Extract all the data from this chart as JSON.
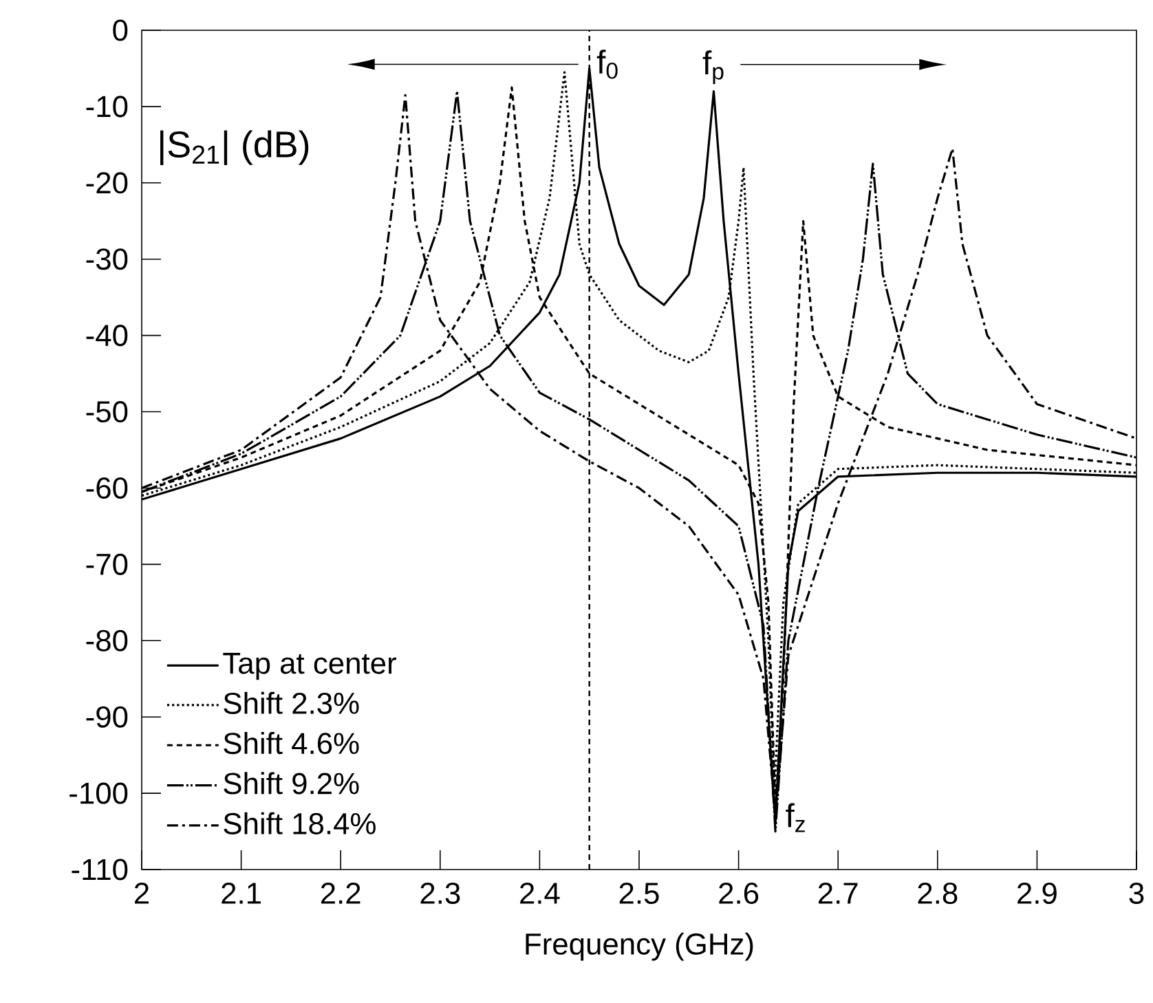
{
  "chart_data": {
    "type": "line",
    "xlabel": "Frequency (GHz)",
    "ylabel": "|S$_{21}$| (dB)",
    "xlim": [
      2,
      3
    ],
    "ylim": [
      -110,
      0
    ],
    "xticks": [
      2,
      2.1,
      2.2,
      2.3,
      2.4,
      2.5,
      2.6,
      2.7,
      2.8,
      2.9,
      3
    ],
    "yticks": [
      -110,
      -100,
      -90,
      -80,
      -70,
      -60,
      -50,
      -40,
      -30,
      -20,
      -10,
      0
    ],
    "grid": false,
    "legend": "bottom left",
    "marker": "none",
    "ref_lines": [
      {
        "axis": "x",
        "value": 2.45,
        "line_style": "dashed",
        "color": "#000000"
      }
    ],
    "annotations": [
      {
        "text": "f$_{0}$",
        "x": 2.45,
        "y": -5
      },
      {
        "text": "f$_{p}$",
        "x": 2.575,
        "y": -8
      },
      {
        "text": "f$_{z}$",
        "x": 2.637,
        "y": -105
      }
    ],
    "series": [
      {
        "name": "Tap at center",
        "color": "#000000",
        "line_style": "solid",
        "x": [
          2.0,
          2.1,
          2.2,
          2.3,
          2.35,
          2.4,
          2.42,
          2.44,
          2.45,
          2.46,
          2.48,
          2.5,
          2.525,
          2.55,
          2.565,
          2.575,
          2.585,
          2.6,
          2.62,
          2.637,
          2.65,
          2.66,
          2.7,
          2.8,
          2.9,
          3.0
        ],
        "values": [
          -61.5,
          -57.5,
          -53.5,
          -48,
          -44,
          -37,
          -32,
          -20,
          -5,
          -18,
          -28,
          -33.5,
          -36,
          -32,
          -22,
          -8,
          -25,
          -45,
          -70,
          -104,
          -70,
          -63,
          -58.5,
          -58,
          -58,
          -58.5
        ]
      },
      {
        "name": "Shift 2.3%",
        "color": "#000000",
        "line_style": "dotted",
        "x": [
          2.0,
          2.1,
          2.2,
          2.3,
          2.35,
          2.39,
          2.41,
          2.425,
          2.44,
          2.45,
          2.48,
          2.52,
          2.55,
          2.57,
          2.59,
          2.6,
          2.605,
          2.615,
          2.63,
          2.636,
          2.645,
          2.66,
          2.7,
          2.8,
          2.9,
          3.0
        ],
        "values": [
          -61,
          -57,
          -52,
          -46,
          -41,
          -33,
          -22,
          -5.5,
          -28,
          -32,
          -38,
          -42,
          -43.5,
          -42,
          -35,
          -25,
          -18,
          -45,
          -80,
          -100,
          -75,
          -62,
          -57.5,
          -57,
          -57.5,
          -58
        ]
      },
      {
        "name": "Shift 4.6%",
        "color": "#000000",
        "line_style": "dashed",
        "x": [
          2.0,
          2.1,
          2.2,
          2.3,
          2.34,
          2.36,
          2.372,
          2.385,
          2.4,
          2.45,
          2.5,
          2.55,
          2.6,
          2.62,
          2.63,
          2.637,
          2.645,
          2.655,
          2.665,
          2.675,
          2.7,
          2.75,
          2.85,
          3.0
        ],
        "values": [
          -60.5,
          -56,
          -50.5,
          -42,
          -33,
          -20,
          -7.5,
          -25,
          -35,
          -45,
          -49,
          -53,
          -57,
          -62,
          -75,
          -102,
          -85,
          -50,
          -25,
          -40,
          -48,
          -52,
          -55,
          -57
        ]
      },
      {
        "name": "Shift 9.2%",
        "color": "#000000",
        "line_style": "dashdotdot",
        "x": [
          2.0,
          2.1,
          2.2,
          2.26,
          2.3,
          2.317,
          2.33,
          2.36,
          2.4,
          2.45,
          2.5,
          2.55,
          2.6,
          2.625,
          2.637,
          2.65,
          2.68,
          2.71,
          2.725,
          2.735,
          2.745,
          2.77,
          2.8,
          2.9,
          3.0
        ],
        "values": [
          -60.5,
          -55.5,
          -48,
          -40,
          -25,
          -8,
          -25,
          -40,
          -47.5,
          -51,
          -55,
          -59,
          -65,
          -78,
          -105,
          -80,
          -60,
          -42,
          -30,
          -17.5,
          -32,
          -45,
          -49,
          -53,
          -56
        ]
      },
      {
        "name": "Shift 18.4%",
        "color": "#000000",
        "line_style": "dashdot",
        "x": [
          2.0,
          2.1,
          2.2,
          2.24,
          2.255,
          2.265,
          2.275,
          2.3,
          2.35,
          2.4,
          2.45,
          2.5,
          2.55,
          2.6,
          2.625,
          2.637,
          2.65,
          2.7,
          2.75,
          2.78,
          2.8,
          2.815,
          2.825,
          2.85,
          2.9,
          3.0
        ],
        "values": [
          -60,
          -55,
          -45.5,
          -35,
          -20,
          -8.5,
          -25,
          -38,
          -47,
          -52.5,
          -56.5,
          -60,
          -65,
          -74,
          -85,
          -103,
          -82,
          -62,
          -45,
          -32,
          -22,
          -15.5,
          -28,
          -40,
          -49,
          -53.5
        ]
      }
    ]
  }
}
